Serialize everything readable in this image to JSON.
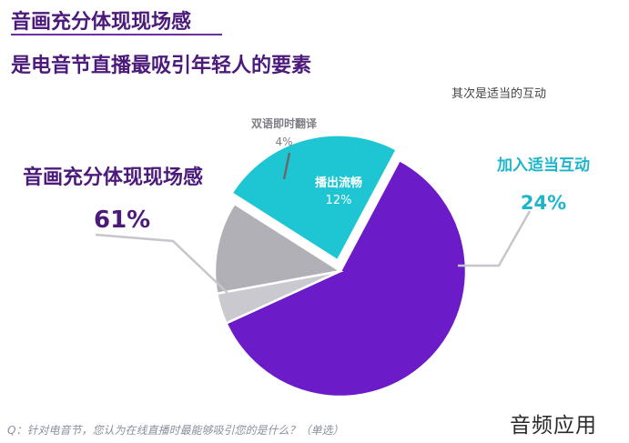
{
  "header": {
    "title_line1": "音画充分体现现场感",
    "title_line2": "是电音节直播最吸引年轻人的要素",
    "subtitle": "其次是适当的互动"
  },
  "chart_data": {
    "type": "pie",
    "slices": [
      {
        "label": "音画充分体现现场感",
        "value": 61,
        "value_label": "61%",
        "color": "#6c1bc9"
      },
      {
        "label": "双语即时翻译",
        "value": 4,
        "value_label": "4%",
        "color": "#c9c9cf"
      },
      {
        "label": "播出流畅",
        "value": 12,
        "value_label": "12%",
        "color": "#b0b0b6"
      },
      {
        "label": "加入适当互动",
        "value": 24,
        "value_label": "24%",
        "color": "#1ec6d4"
      }
    ]
  },
  "footer": {
    "question": "Q：针对电音节，您认为在线直播时最能够吸引您的是什么？（单选）",
    "watermark": "音频应用"
  }
}
